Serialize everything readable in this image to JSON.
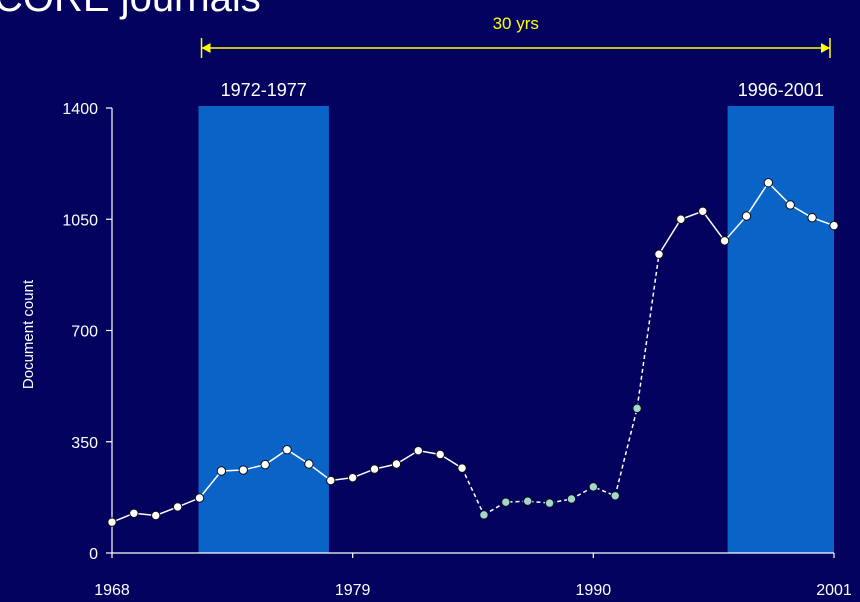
{
  "page": {
    "title": "CORE journals"
  },
  "chart_data": {
    "type": "line",
    "title": "CORE journals",
    "xlabel": "",
    "ylabel": "Document count",
    "xlim": [
      1968,
      2001
    ],
    "ylim": [
      0,
      1400
    ],
    "x_ticks": [
      1968,
      1979,
      1990,
      2001
    ],
    "y_ticks": [
      0,
      350,
      700,
      1050,
      1400
    ],
    "highlight_periods": [
      {
        "label": "1972-1977",
        "start": 1972,
        "end": 1977,
        "color": "#0a64c8"
      },
      {
        "label": "1996-2001",
        "start": 1996,
        "end": 2001,
        "color": "#0a64c8"
      }
    ],
    "span_annotation": {
      "label": "30 yrs",
      "from": 1972,
      "to": 2001,
      "color": "#ffff00"
    },
    "series": [
      {
        "style": "solid",
        "marker_color": "#ffffff",
        "segments": [
          {
            "x": [
              1968,
              1969,
              1970,
              1971,
              1972,
              1973,
              1974,
              1975,
              1976,
              1977,
              1978,
              1979,
              1980,
              1981,
              1982,
              1983,
              1984
            ],
            "y": [
              97,
              125,
              118,
              145,
              173,
              258,
              261,
              278,
              325,
              280,
              228,
              237,
              264,
              280,
              322,
              310,
              267
            ]
          },
          {
            "x": [
              1993,
              1994,
              1995,
              1996,
              1997,
              1998,
              1999,
              2000,
              2001
            ],
            "y": [
              940,
              1050,
              1075,
              982,
              1060,
              1165,
              1095,
              1055,
              1030
            ]
          }
        ]
      },
      {
        "style": "dashed",
        "marker_color": "#a0d8d0",
        "segments": [
          {
            "x": [
              1985,
              1986,
              1987,
              1988,
              1989,
              1990,
              1991
            ],
            "y": [
              120,
              160,
              163,
              157,
              170,
              208,
              180
            ]
          }
        ],
        "connectors": [
          {
            "x": [
              1984,
              1985
            ],
            "y": [
              267,
              120
            ]
          },
          {
            "x": [
              1991,
              1992,
              1993
            ],
            "y": [
              180,
              455,
              940
            ]
          }
        ],
        "extra_points": [
          {
            "x": 1992,
            "y": 455
          }
        ]
      }
    ]
  }
}
